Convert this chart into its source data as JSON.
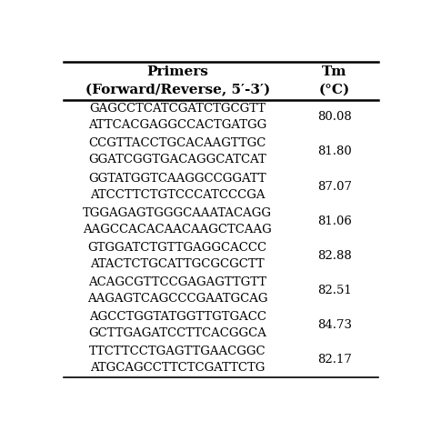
{
  "col1_header": "Primers\n(Forward/Reverse, 5′-3′)",
  "col2_header": "Tm\n(°C)",
  "rows": [
    {
      "primers": [
        "GAGCCTCATCGATCTGCGTT",
        "ATTCACGAGGCCACTGATGG"
      ],
      "tm": "80.08"
    },
    {
      "primers": [
        "CCGTTACCTGCACAAGTTGC",
        "GGATCGGTGACAGGCATCAT"
      ],
      "tm": "81.80"
    },
    {
      "primers": [
        "GGTATGGTCAAGGCCGGATT",
        "ATCCTTCTGTCCCATCCCGA"
      ],
      "tm": "87.07"
    },
    {
      "primers": [
        "TGGAGAGTGGGCAAATACAGG",
        "AAGCCACACAACAAGCTCAAG"
      ],
      "tm": "81.06"
    },
    {
      "primers": [
        "GTGGATCTGTTGAGGCACCC",
        "ATACTCTGCATTGCGCGCTT"
      ],
      "tm": "82.88"
    },
    {
      "primers": [
        "ACAGCGTTCCGAGAGTTGTT",
        "AAGAGTCAGCCCGAATGCAG"
      ],
      "tm": "82.51"
    },
    {
      "primers": [
        "AGCCTGGTATGGTTGTGACC",
        "GCTTGAGATCCTTCACGGCA"
      ],
      "tm": "84.73"
    },
    {
      "primers": [
        "TTCTTCCTGAGTTGAACGGC",
        "ATGCAGCCTTCTCGATTCTG"
      ],
      "tm": "82.17"
    }
  ],
  "bg_color": "#ffffff",
  "text_color": "#000000",
  "header_fontsize": 11,
  "cell_fontsize": 9.5,
  "figsize": [
    4.74,
    4.74
  ],
  "dpi": 100
}
